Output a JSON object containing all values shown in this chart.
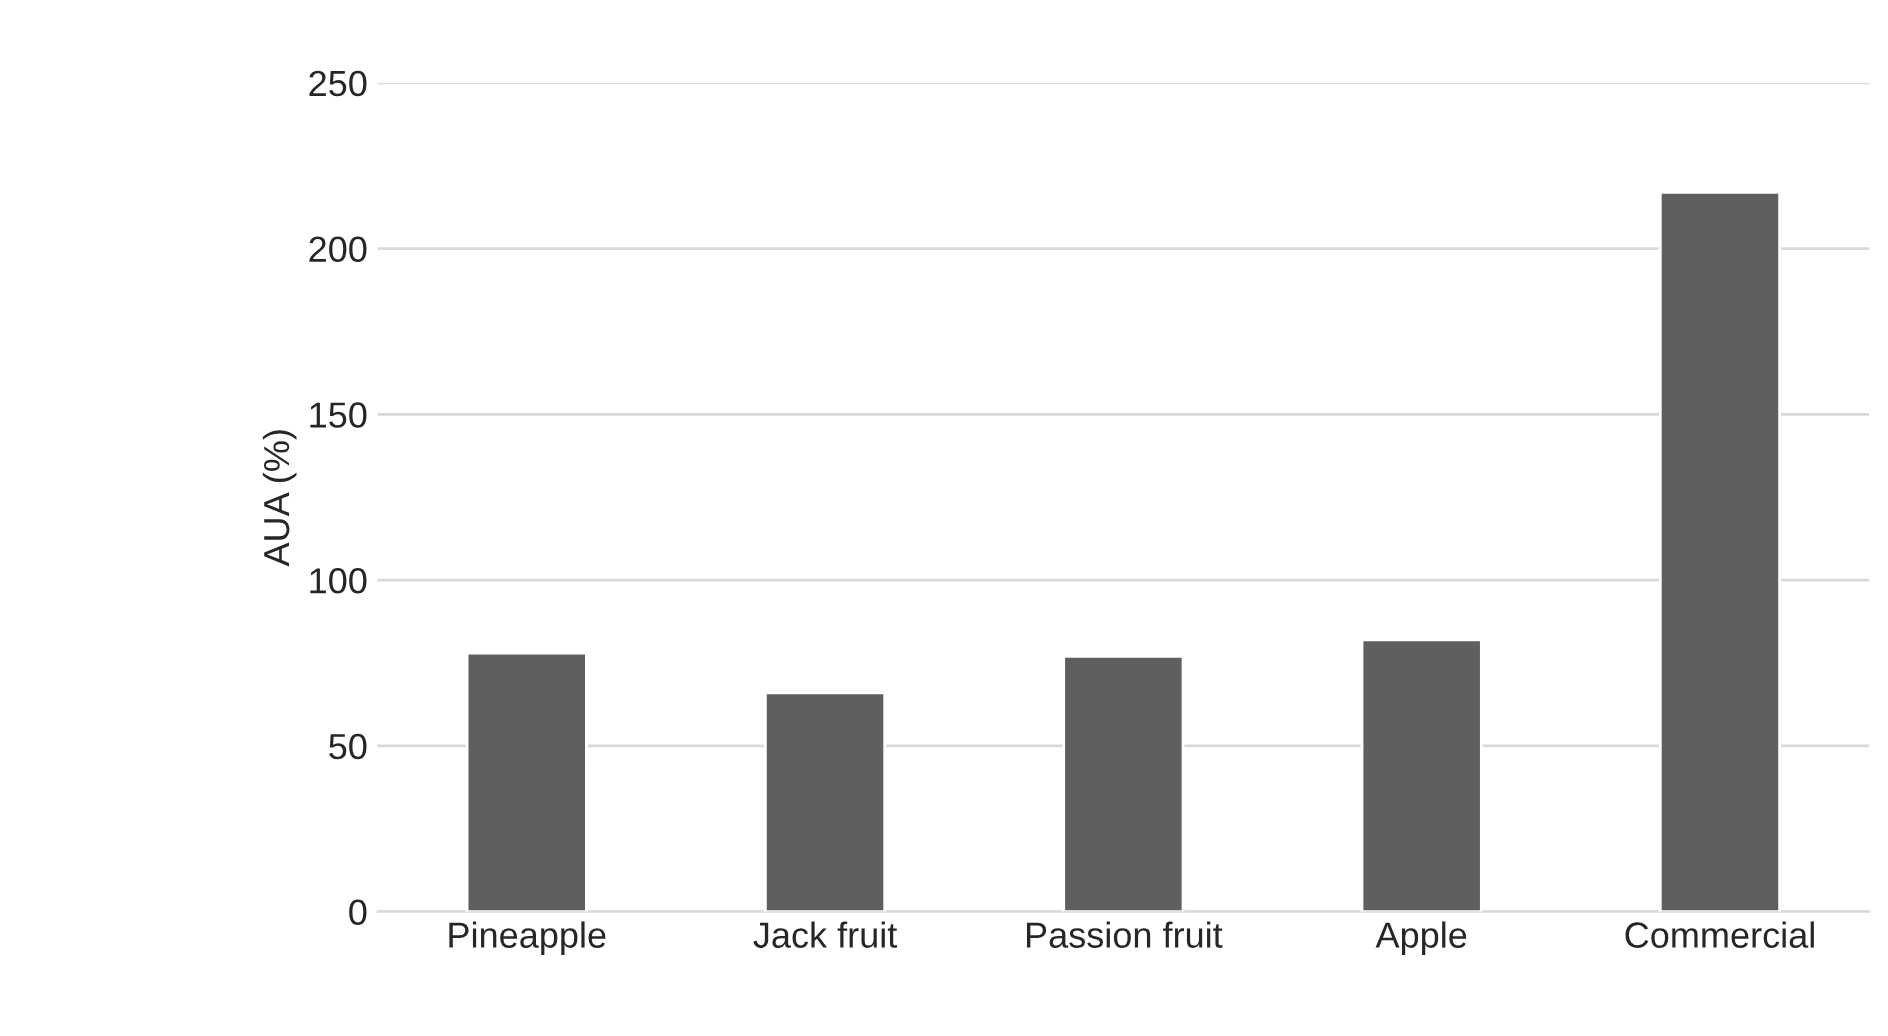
{
  "chart_data": {
    "type": "bar",
    "ylabel": "AUA (%)",
    "categories": [
      "Pineapple",
      "Jack fruit",
      "Passion fruit",
      "Apple",
      "Commercial"
    ],
    "values": [
      78,
      66,
      77,
      82,
      217
    ],
    "color": "#5f5f5f",
    "ylim": [
      0,
      250
    ],
    "yticks": [
      0,
      50,
      100,
      150,
      200,
      250
    ],
    "grid": "y"
  }
}
